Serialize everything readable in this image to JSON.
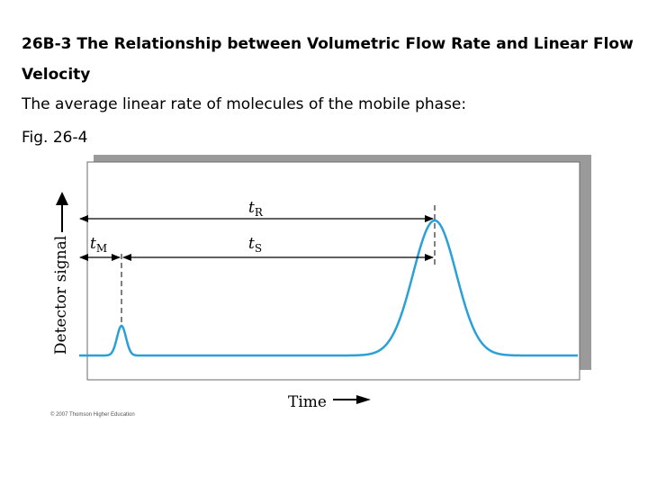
{
  "heading": "26B-3 The Relationship between Volumetric Flow Rate and Linear Flow Velocity",
  "line1": "The average linear rate of molecules of the mobile phase:",
  "line2": "Fig. 26-4",
  "figure": {
    "y_axis_label": "Detector signal",
    "x_axis_label": "Time",
    "tR_label": "t",
    "tR_sub": "R",
    "tM_label": "t",
    "tM_sub": "M",
    "tS_label": "t",
    "tS_sub": "S",
    "copyright": "© 2007 Thomson Higher Education",
    "colors": {
      "trace": "#2aa0d8",
      "panel_border": "#6b6b6b",
      "shadow": "#9a9a9a",
      "arrow": "#000000"
    }
  }
}
